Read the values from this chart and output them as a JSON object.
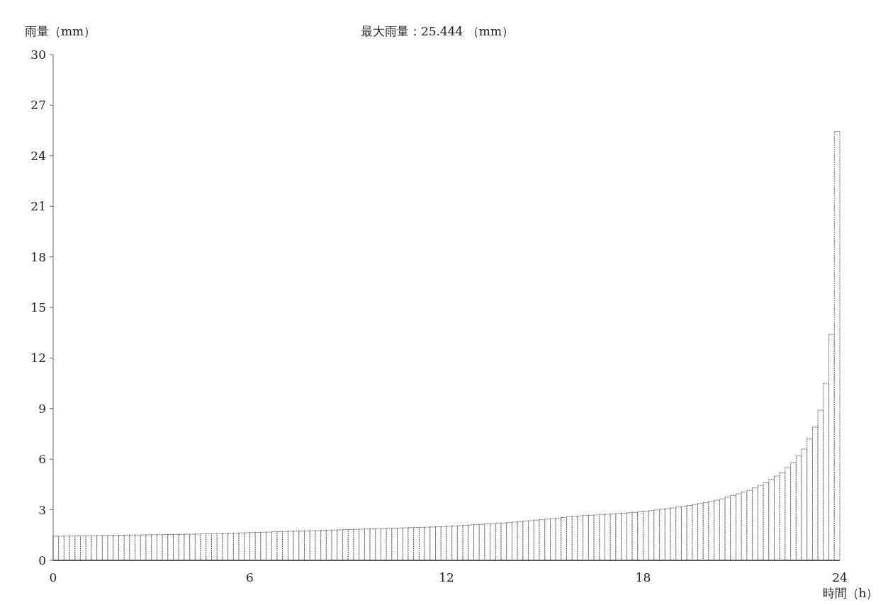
{
  "chart_data": {
    "type": "histogram",
    "title": "最大雨量：25.444 （mm）",
    "xlabel": "時間（h）",
    "ylabel": "雨量（mm）",
    "color": "#ffffff",
    "xlim": [
      0,
      24
    ],
    "ylim": [
      0,
      30
    ],
    "xticks": [
      0,
      6,
      12,
      18,
      24
    ],
    "yticks": [
      0,
      3,
      6,
      9,
      12,
      15,
      18,
      21,
      24,
      27,
      30
    ],
    "bins": [
      0,
      0.167,
      0.333,
      0.5,
      0.667,
      0.833,
      1,
      1.167,
      1.333,
      1.5,
      1.667,
      1.833,
      2,
      2.167,
      2.333,
      2.5,
      2.667,
      2.833,
      3,
      3.167,
      3.333,
      3.5,
      3.667,
      3.833,
      4,
      4.167,
      4.333,
      4.5,
      4.667,
      4.833,
      5,
      5.167,
      5.333,
      5.5,
      5.667,
      5.833,
      6,
      6.167,
      6.333,
      6.5,
      6.667,
      6.833,
      7,
      7.167,
      7.333,
      7.5,
      7.667,
      7.833,
      8,
      8.167,
      8.333,
      8.5,
      8.667,
      8.833,
      9,
      9.167,
      9.333,
      9.5,
      9.667,
      9.833,
      10,
      10.167,
      10.333,
      10.5,
      10.667,
      10.833,
      11,
      11.167,
      11.333,
      11.5,
      11.667,
      11.833,
      12,
      12.167,
      12.333,
      12.5,
      12.667,
      12.833,
      13,
      13.167,
      13.333,
      13.5,
      13.667,
      13.833,
      14,
      14.167,
      14.333,
      14.5,
      14.667,
      14.833,
      15,
      15.167,
      15.333,
      15.5,
      15.667,
      15.833,
      16,
      16.167,
      16.333,
      16.5,
      16.667,
      16.833,
      17,
      17.167,
      17.333,
      17.5,
      17.667,
      17.833,
      18,
      18.167,
      18.333,
      18.5,
      18.667,
      18.833,
      19,
      19.167,
      19.333,
      19.5,
      19.667,
      19.833,
      20,
      20.167,
      20.333,
      20.5,
      20.667,
      20.833,
      21,
      21.167,
      21.333,
      21.5,
      21.667,
      21.833,
      22,
      22.167,
      22.333,
      22.5,
      22.667,
      22.833,
      23,
      23.167,
      23.333,
      23.5,
      23.667,
      23.833,
      24
    ],
    "values": [
      1.43,
      1.43,
      1.44,
      1.44,
      1.45,
      1.45,
      1.46,
      1.46,
      1.47,
      1.47,
      1.48,
      1.48,
      1.49,
      1.49,
      1.5,
      1.5,
      1.51,
      1.51,
      1.52,
      1.52,
      1.53,
      1.53,
      1.54,
      1.54,
      1.55,
      1.55,
      1.56,
      1.57,
      1.58,
      1.58,
      1.59,
      1.6,
      1.61,
      1.62,
      1.63,
      1.64,
      1.65,
      1.66,
      1.67,
      1.68,
      1.69,
      1.7,
      1.71,
      1.72,
      1.73,
      1.74,
      1.75,
      1.76,
      1.77,
      1.78,
      1.79,
      1.8,
      1.81,
      1.82,
      1.83,
      1.84,
      1.85,
      1.86,
      1.87,
      1.88,
      1.89,
      1.9,
      1.91,
      1.92,
      1.93,
      1.94,
      1.95,
      1.96,
      1.97,
      1.98,
      1.99,
      2.0,
      2.02,
      2.04,
      2.06,
      2.08,
      2.1,
      2.12,
      2.14,
      2.16,
      2.18,
      2.2,
      2.22,
      2.24,
      2.27,
      2.3,
      2.33,
      2.36,
      2.39,
      2.42,
      2.45,
      2.48,
      2.51,
      2.55,
      2.59,
      2.62,
      2.64,
      2.66,
      2.68,
      2.7,
      2.72,
      2.74,
      2.76,
      2.78,
      2.8,
      2.82,
      2.85,
      2.88,
      2.91,
      2.95,
      2.99,
      3.03,
      3.07,
      3.11,
      3.16,
      3.21,
      3.26,
      3.31,
      3.37,
      3.43,
      3.5,
      3.57,
      3.65,
      3.75,
      3.85,
      3.95,
      4.05,
      4.15,
      4.3,
      4.45,
      4.6,
      4.8,
      5.0,
      5.2,
      5.5,
      5.8,
      6.2,
      6.6,
      7.2,
      7.9,
      8.9,
      10.5,
      13.4,
      25.444
    ]
  }
}
